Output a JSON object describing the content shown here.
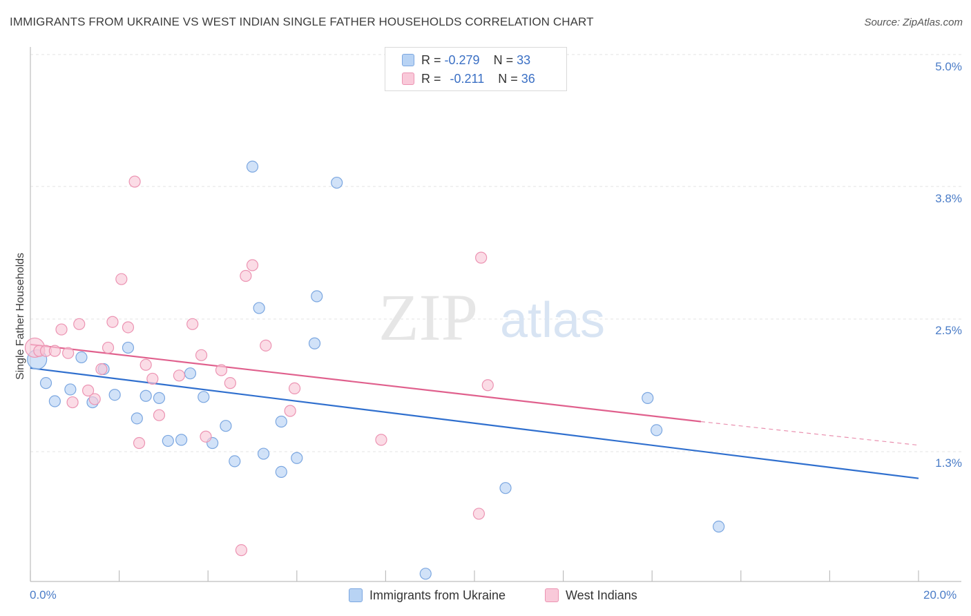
{
  "header": {
    "title": "IMMIGRANTS FROM UKRAINE VS WEST INDIAN SINGLE FATHER HOUSEHOLDS CORRELATION CHART",
    "source": "Source: ZipAtlas.com"
  },
  "watermark": {
    "zip": "ZIP",
    "atlas": "atlas"
  },
  "legend": {
    "rows": [
      {
        "r_label": "R = ",
        "r_value": "-0.279",
        "n_label": "N = ",
        "n_value": "33",
        "color": "#a9c8f0",
        "border": "#7aa6e0"
      },
      {
        "r_label": "R = ",
        "r_value": "-0.211",
        "n_label": "N = ",
        "n_value": "36",
        "color": "#f7bcd0",
        "border": "#ec93b2"
      }
    ]
  },
  "bottom_legend": {
    "items": [
      {
        "label": "Immigrants from Ukraine",
        "color": "#b8d3f4",
        "border": "#7aa6e0"
      },
      {
        "label": "West Indians",
        "color": "#f9c9d9",
        "border": "#ec93b2"
      }
    ]
  },
  "chart_data": {
    "type": "scatter",
    "title": "IMMIGRANTS FROM UKRAINE VS WEST INDIAN SINGLE FATHER HOUSEHOLDS CORRELATION CHART",
    "xlabel": "",
    "ylabel": "Single Father Households",
    "xlim": [
      0,
      20
    ],
    "ylim": [
      0.0,
      5.2
    ],
    "x_tick_labels": [
      "0.0%",
      "20.0%"
    ],
    "y_ticks": [
      {
        "value": 5.0,
        "label": "5.0%"
      },
      {
        "value": 3.8,
        "label": "3.8%"
      },
      {
        "value": 2.5,
        "label": "2.5%"
      },
      {
        "value": 1.3,
        "label": "1.3%"
      }
    ],
    "grid": true,
    "series": [
      {
        "name": "Immigrants from Ukraine",
        "color": "#7aa6e0",
        "fill": "#b8d3f4",
        "line_color": "#2f6fce",
        "trend": {
          "x0": 0.0,
          "y0": 2.19,
          "x1": 20.0,
          "y1": 1.16
        },
        "points": [
          [
            0.15,
            2.27
          ],
          [
            0.35,
            2.05
          ],
          [
            0.55,
            1.88
          ],
          [
            0.9,
            1.99
          ],
          [
            1.15,
            2.29
          ],
          [
            1.4,
            1.87
          ],
          [
            1.65,
            2.18
          ],
          [
            1.9,
            1.94
          ],
          [
            2.2,
            2.38
          ],
          [
            2.4,
            1.72
          ],
          [
            2.6,
            1.93
          ],
          [
            2.9,
            1.91
          ],
          [
            3.1,
            1.51
          ],
          [
            3.4,
            1.52
          ],
          [
            3.6,
            2.14
          ],
          [
            3.9,
            1.92
          ],
          [
            4.1,
            1.49
          ],
          [
            4.4,
            1.65
          ],
          [
            4.6,
            1.32
          ],
          [
            5.0,
            4.07
          ],
          [
            5.15,
            2.75
          ],
          [
            5.25,
            1.39
          ],
          [
            5.65,
            1.22
          ],
          [
            5.65,
            1.69
          ],
          [
            6.0,
            1.35
          ],
          [
            6.4,
            2.42
          ],
          [
            6.45,
            2.86
          ],
          [
            6.9,
            3.92
          ],
          [
            8.9,
            0.27
          ],
          [
            10.7,
            1.07
          ],
          [
            13.9,
            1.91
          ],
          [
            14.1,
            1.61
          ],
          [
            15.5,
            0.71
          ]
        ]
      },
      {
        "name": "West Indians",
        "color": "#ec93b2",
        "fill": "#f9c9d9",
        "line_color": "#e0608d",
        "trend": {
          "x0": 0.0,
          "y0": 2.41,
          "x1": 15.1,
          "y1": 1.69
        },
        "trend_dashed": {
          "x0": 15.1,
          "y0": 1.69,
          "x1": 20.0,
          "y1": 1.47
        },
        "points": [
          [
            0.1,
            2.38
          ],
          [
            0.2,
            2.35
          ],
          [
            0.35,
            2.35
          ],
          [
            0.55,
            2.35
          ],
          [
            0.7,
            2.55
          ],
          [
            0.85,
            2.33
          ],
          [
            0.95,
            1.87
          ],
          [
            1.1,
            2.6
          ],
          [
            1.3,
            1.98
          ],
          [
            1.45,
            1.9
          ],
          [
            1.6,
            2.18
          ],
          [
            1.75,
            2.38
          ],
          [
            1.85,
            2.62
          ],
          [
            2.05,
            3.02
          ],
          [
            2.2,
            2.57
          ],
          [
            2.35,
            3.93
          ],
          [
            2.45,
            1.49
          ],
          [
            2.6,
            2.22
          ],
          [
            2.75,
            2.09
          ],
          [
            2.9,
            1.75
          ],
          [
            3.35,
            2.12
          ],
          [
            3.65,
            2.6
          ],
          [
            3.85,
            2.31
          ],
          [
            3.95,
            1.55
          ],
          [
            4.3,
            2.17
          ],
          [
            4.5,
            2.05
          ],
          [
            4.75,
            0.49
          ],
          [
            4.85,
            3.05
          ],
          [
            5.0,
            3.15
          ],
          [
            5.3,
            2.4
          ],
          [
            5.85,
            1.79
          ],
          [
            5.95,
            2.0
          ],
          [
            7.9,
            1.52
          ],
          [
            10.1,
            0.83
          ],
          [
            10.15,
            3.22
          ],
          [
            10.3,
            2.03
          ]
        ]
      }
    ]
  }
}
